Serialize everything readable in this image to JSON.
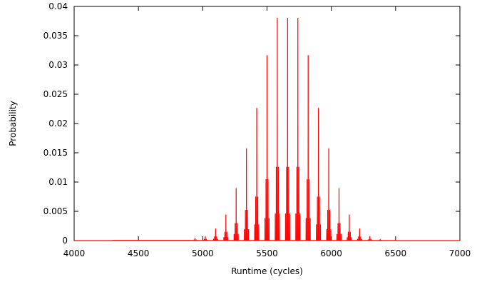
{
  "chart_data": {
    "type": "line",
    "xlabel": "Runtime (cycles)",
    "ylabel": "Probability",
    "xlim": [
      4000,
      7000
    ],
    "ylim": [
      0,
      0.04
    ],
    "x_ticks": [
      4000,
      4500,
      5000,
      5500,
      6000,
      6500,
      7000
    ],
    "y_ticks": [
      0,
      0.005,
      0.01,
      0.015,
      0.02,
      0.025,
      0.03,
      0.035,
      0.04
    ],
    "x_tick_labels": [
      "4000",
      "4500",
      "5000",
      "5500",
      "6000",
      "6500",
      "7000"
    ],
    "y_tick_labels": [
      "0",
      "0.005",
      "0.01",
      "0.015",
      "0.02",
      "0.025",
      "0.03",
      "0.035",
      "0.04"
    ],
    "grid": false,
    "line_color": "#ff0000",
    "series": [
      {
        "comment_free": true,
        "cluster_centers": [
          4940,
          5020,
          5100,
          5180,
          5260,
          5340,
          5420,
          5500,
          5580,
          5660,
          5740,
          5820,
          5900,
          5980,
          6060,
          6140,
          6220,
          6300,
          6380
        ],
        "cluster_peaks": [
          0.0004,
          0.0007,
          0.002,
          0.0044,
          0.0089,
          0.0157,
          0.0226,
          0.0316,
          0.038,
          0.038,
          0.038,
          0.0316,
          0.0226,
          0.0157,
          0.0089,
          0.0044,
          0.002,
          0.0007,
          0.0002
        ]
      }
    ]
  }
}
